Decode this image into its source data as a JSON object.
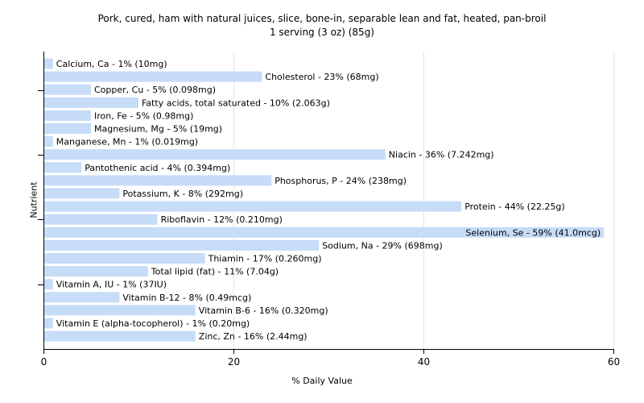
{
  "chart_data": {
    "type": "bar",
    "orientation": "horizontal",
    "title": "Pork, cured, ham with natural juices, slice, bone-in, separable lean and fat, heated, pan-broil",
    "subtitle": "1 serving (3 oz) (85g)",
    "xlabel": "% Daily Value",
    "ylabel": "Nutrient",
    "xlim": [
      0,
      60
    ],
    "xticks": [
      0,
      20,
      40,
      60
    ],
    "grid": "vertical",
    "bar_color": "#c6dcf7",
    "categories": [
      "Calcium, Ca - 1% (10mg)",
      "Cholesterol - 23% (68mg)",
      "Copper, Cu - 5% (0.098mg)",
      "Fatty acids, total saturated - 10% (2.063g)",
      "Iron, Fe - 5% (0.98mg)",
      "Magnesium, Mg - 5% (19mg)",
      "Manganese, Mn - 1% (0.019mg)",
      "Niacin - 36% (7.242mg)",
      "Pantothenic acid - 4% (0.394mg)",
      "Phosphorus, P - 24% (238mg)",
      "Potassium, K - 8% (292mg)",
      "Protein - 44% (22.25g)",
      "Riboflavin - 12% (0.210mg)",
      "Selenium, Se - 59% (41.0mcg)",
      "Sodium, Na - 29% (698mg)",
      "Thiamin - 17% (0.260mg)",
      "Total lipid (fat) - 11% (7.04g)",
      "Vitamin A, IU - 1% (37IU)",
      "Vitamin B-12 - 8% (0.49mcg)",
      "Vitamin B-6 - 16% (0.320mg)",
      "Vitamin E (alpha-tocopherol) - 1% (0.20mg)",
      "Zinc, Zn - 16% (2.44mg)"
    ],
    "values": [
      1,
      23,
      5,
      10,
      5,
      5,
      1,
      36,
      4,
      24,
      8,
      44,
      12,
      59,
      29,
      17,
      11,
      1,
      8,
      16,
      1,
      16
    ]
  }
}
